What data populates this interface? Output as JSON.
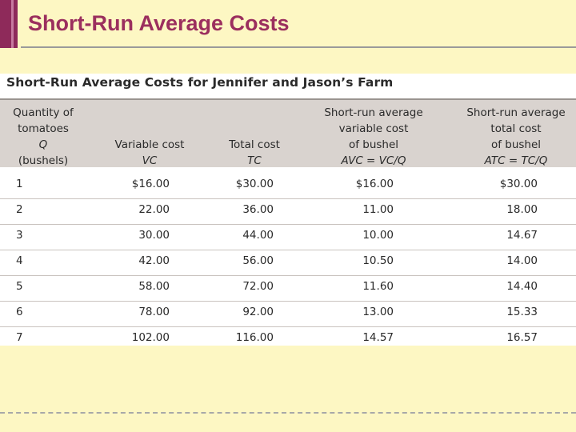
{
  "slide": {
    "title": "Short-Run Average Costs"
  },
  "table": {
    "title": "Short-Run Average Costs for Jennifer and Jason’s Farm",
    "headers": [
      {
        "lines": [
          "Quantity of",
          "tomatoes",
          "Q",
          "(bushels)"
        ]
      },
      {
        "lines": [
          "Variable cost",
          "VC"
        ]
      },
      {
        "lines": [
          "Total cost",
          "TC"
        ]
      },
      {
        "lines": [
          "Short-run average",
          "variable cost",
          "of bushel",
          "AVC  =  VC/Q"
        ]
      },
      {
        "lines": [
          "Short-run average",
          "total cost",
          "of bushel",
          "ATC  =  TC/Q"
        ]
      }
    ],
    "rows": [
      {
        "q": "1",
        "vc": "$16.00",
        "tc": "$30.00",
        "avc": "$16.00",
        "atc": "$30.00"
      },
      {
        "q": "2",
        "vc": "22.00",
        "tc": "36.00",
        "avc": "11.00",
        "atc": "18.00"
      },
      {
        "q": "3",
        "vc": "30.00",
        "tc": "44.00",
        "avc": "10.00",
        "atc": "14.67"
      },
      {
        "q": "4",
        "vc": "42.00",
        "tc": "56.00",
        "avc": "10.50",
        "atc": "14.00"
      },
      {
        "q": "5",
        "vc": "58.00",
        "tc": "72.00",
        "avc": "11.60",
        "atc": "14.40"
      },
      {
        "q": "6",
        "vc": "78.00",
        "tc": "92.00",
        "avc": "13.00",
        "atc": "15.33"
      },
      {
        "q": "7",
        "vc": "102.00",
        "tc": "116.00",
        "avc": "14.57",
        "atc": "16.57"
      }
    ]
  }
}
